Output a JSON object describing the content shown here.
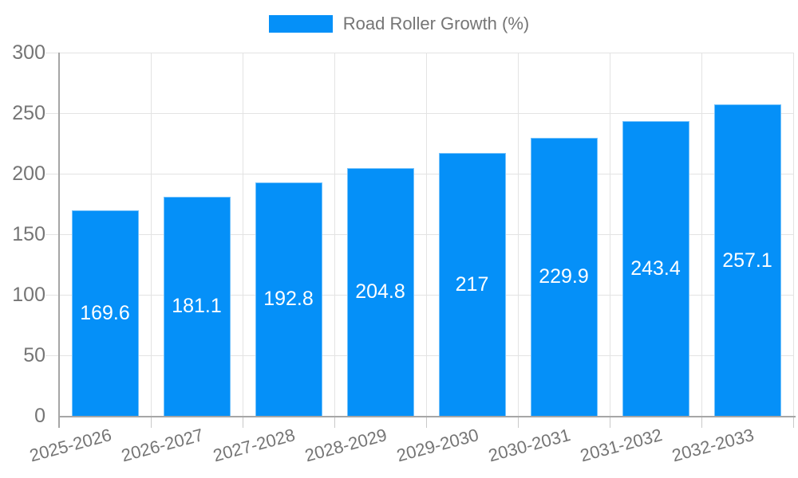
{
  "legend": {
    "label": "Road Roller Growth (%)"
  },
  "chart_data": {
    "type": "bar",
    "title": "",
    "series_name": "Road Roller Growth (%)",
    "categories": [
      "2025-2026",
      "2026-2027",
      "2027-2028",
      "2028-2029",
      "2029-2030",
      "2030-2031",
      "2031-2032",
      "2032-2033"
    ],
    "values": [
      169.6,
      181.1,
      192.8,
      204.8,
      217,
      229.9,
      243.4,
      257.1
    ],
    "value_labels": [
      "169.6",
      "181.1",
      "192.8",
      "204.8",
      "217",
      "229.9",
      "243.4",
      "257.1"
    ],
    "ylim": [
      0,
      300
    ],
    "yticks": [
      0,
      50,
      100,
      150,
      200,
      250,
      300
    ],
    "grid": true,
    "legend_position": "top-center",
    "x_label_rotation_deg": -15,
    "colors": {
      "bar_fill": "#0590f8",
      "value_label": "#ffffff",
      "axis_text": "#757575",
      "gridline": "#e3e3e3",
      "axis_line": "#a6a6a6",
      "background": "#ffffff"
    }
  }
}
